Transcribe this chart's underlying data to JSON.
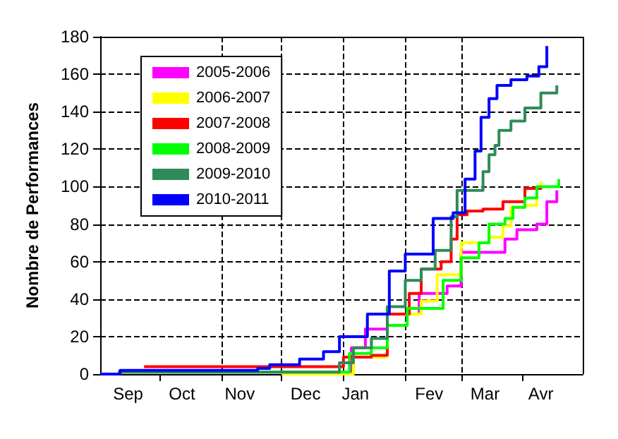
{
  "chart_data": {
    "type": "step",
    "ylabel": "Nombre de Performances",
    "xlim": [
      "2010-09-01",
      "2011-05-01"
    ],
    "ylim": [
      0,
      180
    ],
    "yticks": [
      0,
      20,
      40,
      60,
      80,
      100,
      120,
      140,
      160,
      180
    ],
    "xticks": [
      {
        "value": "2010-10-01",
        "label": null
      },
      {
        "value": "2010-11-01",
        "label": null
      },
      {
        "value": "2010-12-01",
        "label": null
      },
      {
        "value": "2011-01-01",
        "label": null
      },
      {
        "value": "2011-02-01",
        "label": null
      },
      {
        "value": "2011-03-01",
        "label": null
      },
      {
        "value": "2011-04-01",
        "label": null
      },
      {
        "value": "2010-09-15",
        "label": "Sep"
      },
      {
        "value": "2010-10-12",
        "label": "Oct"
      },
      {
        "value": "2010-11-10",
        "label": "Nov"
      },
      {
        "value": "2010-12-13",
        "label": "Dec"
      },
      {
        "value": "2011-01-07",
        "label": "Jan"
      },
      {
        "value": "2011-02-13",
        "label": "Fev"
      },
      {
        "value": "2011-03-13",
        "label": "Mar"
      },
      {
        "value": "2011-04-10",
        "label": "Avr"
      }
    ],
    "grid": true,
    "legend": "top left",
    "line_style": "solid",
    "marker": "none",
    "series": [
      {
        "name": "2005-2006",
        "color": "#ff00ff",
        "x": [
          "2010-12-28",
          "2011-01-05",
          "2011-01-12",
          "2011-01-23",
          "2011-02-08",
          "2011-02-22",
          "2011-03-01",
          "2011-03-15",
          "2011-03-23",
          "2011-03-29",
          "2011-04-08",
          "2011-04-13",
          "2011-04-18"
        ],
        "values": [
          0,
          14,
          24,
          32,
          43,
          47,
          65,
          65,
          72,
          77,
          80,
          92,
          98
        ]
      },
      {
        "name": "2006-2007",
        "color": "#ffff00",
        "x": [
          "2010-12-01",
          "2011-01-06",
          "2011-01-22",
          "2011-01-23",
          "2011-02-09",
          "2011-02-17",
          "2011-03-01",
          "2011-03-15",
          "2011-03-22",
          "2011-03-26",
          "2011-04-02",
          "2011-04-08",
          "2011-04-10"
        ],
        "values": [
          0,
          9,
          10,
          32,
          39,
          53,
          70,
          73,
          79,
          89,
          90,
          100,
          103
        ]
      },
      {
        "name": "2007-2008",
        "color": "#ff0000",
        "x": [
          "2010-09-23",
          "2011-01-01",
          "2011-01-15",
          "2011-01-23",
          "2011-02-03",
          "2011-02-09",
          "2011-02-19",
          "2011-02-24",
          "2011-02-27",
          "2011-03-04",
          "2011-03-12",
          "2011-03-22",
          "2011-04-02",
          "2011-04-10"
        ],
        "values": [
          4,
          9,
          10,
          32,
          43,
          56,
          60,
          72,
          85,
          87,
          88,
          92,
          99,
          100
        ]
      },
      {
        "name": "2008-2009",
        "color": "#00ff00",
        "x": [
          "2010-09-10",
          "2010-12-28",
          "2011-01-04",
          "2011-01-15",
          "2011-01-23",
          "2011-02-02",
          "2011-02-20",
          "2011-03-01",
          "2011-03-10",
          "2011-03-15",
          "2011-03-23",
          "2011-03-27",
          "2011-04-02",
          "2011-04-08",
          "2011-04-19"
        ],
        "values": [
          1,
          1,
          11,
          14,
          26,
          35,
          50,
          62,
          70,
          80,
          83,
          89,
          94,
          100,
          104
        ]
      },
      {
        "name": "2009-2010",
        "color": "#2e8b57",
        "x": [
          "2010-09-10",
          "2010-12-30",
          "2011-01-06",
          "2011-01-15",
          "2011-01-23",
          "2011-02-01",
          "2011-02-09",
          "2011-02-16",
          "2011-02-24",
          "2011-02-27",
          "2011-03-07",
          "2011-03-12",
          "2011-03-15",
          "2011-03-18",
          "2011-03-20",
          "2011-03-26",
          "2011-04-02",
          "2011-04-10",
          "2011-04-18"
        ],
        "values": [
          1,
          6,
          14,
          19,
          36,
          50,
          56,
          66,
          84,
          98,
          98,
          108,
          117,
          122,
          130,
          135,
          142,
          150,
          154
        ]
      },
      {
        "name": "2010-2011",
        "color": "#0000ff",
        "x": [
          "2010-09-01",
          "2010-09-11",
          "2010-11-19",
          "2010-11-25",
          "2010-12-10",
          "2010-12-22",
          "2010-12-30",
          "2011-01-13",
          "2011-01-24",
          "2011-02-01",
          "2011-02-15",
          "2011-02-25",
          "2011-03-03",
          "2011-03-08",
          "2011-03-11",
          "2011-03-15",
          "2011-03-19",
          "2011-03-26",
          "2011-04-03",
          "2011-04-09",
          "2011-04-13"
        ],
        "values": [
          0,
          2,
          3,
          5,
          8,
          12,
          20,
          32,
          55,
          64,
          83,
          86,
          104,
          119,
          137,
          147,
          154,
          157,
          159,
          164,
          175
        ]
      }
    ]
  }
}
